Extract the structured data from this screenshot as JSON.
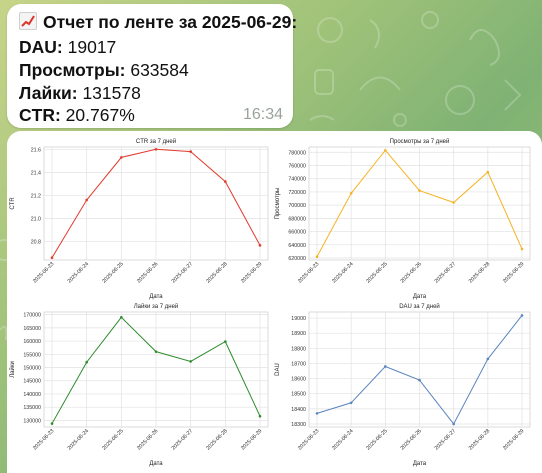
{
  "message": {
    "title": "Отчет по ленте за 2025-06-29:",
    "title_icon": "chart-increasing-icon",
    "dau_label": "DAU:",
    "dau_value": "19017",
    "views_label": "Просмотры:",
    "views_value": "633584",
    "likes_label": "Лайки:",
    "likes_value": "131578",
    "ctr_label": "CTR:",
    "ctr_value": "20.767%",
    "time": "16:34"
  },
  "colors": {
    "ctr": "#e23b2e",
    "views": "#f5b324",
    "likes": "#2e8b2e",
    "dau": "#5b84bf"
  },
  "chart_data": [
    {
      "type": "line",
      "title": "CTR за 7 дней",
      "xlabel": "Дата",
      "ylabel": "CTR",
      "categories": [
        "2025-06-23",
        "2025-06-24",
        "2025-06-25",
        "2025-06-26",
        "2025-06-27",
        "2025-06-28",
        "2025-06-29"
      ],
      "values": [
        20.66,
        21.16,
        21.53,
        21.6,
        21.58,
        21.32,
        20.767
      ],
      "ylim": [
        20.64,
        21.62
      ],
      "yticks": [
        20.8,
        21.0,
        21.2,
        21.4,
        21.6
      ],
      "ytick_labels": [
        "20.8",
        "21.0",
        "21.2",
        "21.4",
        "21.6"
      ],
      "color": "#e23b2e"
    },
    {
      "type": "line",
      "title": "Просмотры за 7 дней",
      "xlabel": "Дата",
      "ylabel": "Просмотры",
      "categories": [
        "2025-06-23",
        "2025-06-24",
        "2025-06-25",
        "2025-06-26",
        "2025-06-27",
        "2025-06-28",
        "2025-06-29"
      ],
      "values": [
        622000,
        718000,
        783000,
        722000,
        704000,
        750000,
        633584
      ],
      "ylim": [
        617000,
        788000
      ],
      "yticks": [
        620000,
        640000,
        660000,
        680000,
        700000,
        720000,
        740000,
        760000,
        780000
      ],
      "ytick_labels": [
        "620000",
        "640000",
        "660000",
        "680000",
        "700000",
        "720000",
        "740000",
        "760000",
        "780000"
      ],
      "color": "#f5b324"
    },
    {
      "type": "line",
      "title": "Лайки за 7 дней",
      "xlabel": "Дата",
      "ylabel": "Лайки",
      "categories": [
        "2025-06-23",
        "2025-06-24",
        "2025-06-25",
        "2025-06-26",
        "2025-06-27",
        "2025-06-28",
        "2025-06-29"
      ],
      "values": [
        128800,
        152000,
        169000,
        156000,
        152300,
        159800,
        131578
      ],
      "ylim": [
        127500,
        171000
      ],
      "yticks": [
        130000,
        135000,
        140000,
        145000,
        150000,
        155000,
        160000,
        165000,
        170000
      ],
      "ytick_labels": [
        "130000",
        "135000",
        "140000",
        "145000",
        "150000",
        "155000",
        "160000",
        "165000",
        "170000"
      ],
      "color": "#2e8b2e"
    },
    {
      "type": "line",
      "title": "DAU за 7 дней",
      "xlabel": "Дата",
      "ylabel": "DAU",
      "categories": [
        "2025-06-23",
        "2025-06-24",
        "2025-06-25",
        "2025-06-26",
        "2025-06-27",
        "2025-06-28",
        "2025-06-29"
      ],
      "values": [
        18370,
        18440,
        18680,
        18590,
        18300,
        18730,
        19017
      ],
      "ylim": [
        18280,
        19040
      ],
      "yticks": [
        18300,
        18400,
        18500,
        18600,
        18700,
        18800,
        18900,
        19000
      ],
      "ytick_labels": [
        "18300",
        "18400",
        "18500",
        "18600",
        "18700",
        "18800",
        "18900",
        "19000"
      ],
      "color": "#5b84bf"
    }
  ]
}
